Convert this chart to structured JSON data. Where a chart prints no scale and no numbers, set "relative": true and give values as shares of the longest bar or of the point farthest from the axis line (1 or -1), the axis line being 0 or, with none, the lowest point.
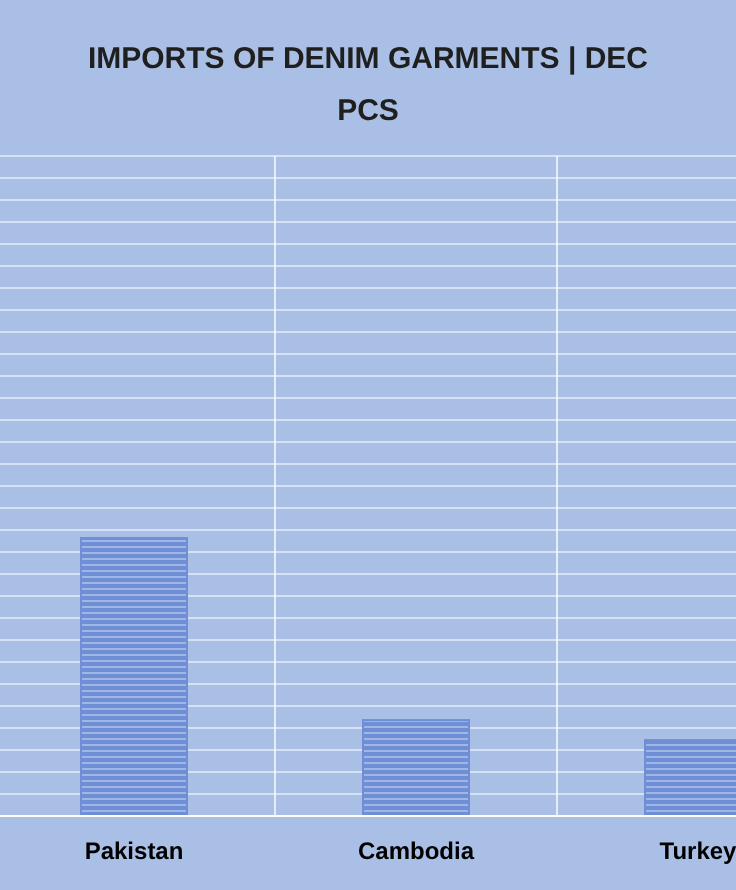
{
  "chart_data": {
    "type": "bar",
    "title": "IMPORTS OF DENIM GARMENTS | DEC PCS",
    "categories": [
      "Pakistan",
      "Cambodia",
      "Turkey"
    ],
    "values": [
      1,
      0.345,
      0.273
    ],
    "relative": true,
    "color": "#6e8fd6",
    "grid": true
  }
}
